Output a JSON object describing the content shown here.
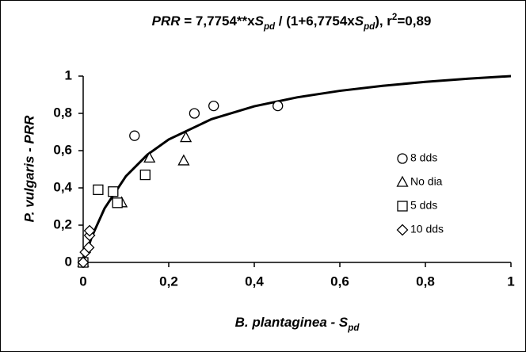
{
  "chart_data": {
    "type": "scatter",
    "title": [
      {
        "text": "PRR",
        "style": "italic"
      },
      {
        "text": " = 7,7754**x",
        "style": "normal"
      },
      {
        "text": "S",
        "style": "italic"
      },
      {
        "text": "pd",
        "style": "sub"
      },
      {
        "text": " / (1+6,7754x",
        "style": "normal"
      },
      {
        "text": "S",
        "style": "italic"
      },
      {
        "text": "pd",
        "style": "sub"
      },
      {
        "text": "), r",
        "style": "normal"
      },
      {
        "text": "2",
        "style": "sup"
      },
      {
        "text": "=0,89",
        "style": "normal"
      }
    ],
    "x_label": [
      {
        "text": "B. plantaginea - S",
        "style": "italic"
      },
      {
        "text": "pd",
        "style": "sub"
      }
    ],
    "y_label": "P. vulgaris - PRR",
    "xlim": [
      0,
      1
    ],
    "ylim": [
      0,
      1
    ],
    "xticks": [
      0,
      {
        "value": 0.2,
        "label": "0,2"
      },
      {
        "value": 0.4,
        "label": "0,4"
      },
      {
        "value": 0.6,
        "label": "0,6"
      },
      {
        "value": 0.8,
        "label": "0,8"
      },
      1
    ],
    "yticks": [
      0,
      {
        "value": 0.2,
        "label": "0,2"
      },
      {
        "value": 0.4,
        "label": "0,4"
      },
      {
        "value": 0.6,
        "label": "0,6"
      },
      {
        "value": 0.8,
        "label": "0,8"
      },
      1
    ],
    "curve": {
      "color": "#000000",
      "x": [
        0,
        0.02,
        0.05,
        0.1,
        0.15,
        0.2,
        0.3,
        0.4,
        0.5,
        0.6,
        0.7,
        0.8,
        0.9,
        1
      ],
      "y": [
        0,
        0.137,
        0.29,
        0.463,
        0.578,
        0.66,
        0.769,
        0.838,
        0.886,
        0.921,
        0.948,
        0.969,
        0.986,
        1
      ]
    },
    "series": [
      {
        "name": "8 dds",
        "marker": "circle",
        "color": "#000000",
        "x": [
          0,
          0.12,
          0.26,
          0.305,
          0.455
        ],
        "values": [
          0,
          0.68,
          0.8,
          0.84,
          0.84
        ]
      },
      {
        "name": "No dia",
        "marker": "triangle",
        "color": "#000000",
        "x": [
          0,
          0.09,
          0.155,
          0.235,
          0.24
        ],
        "values": [
          0,
          0.32,
          0.56,
          0.545,
          0.67
        ]
      },
      {
        "name": "5 dds",
        "marker": "square",
        "color": "#000000",
        "x": [
          0,
          0.035,
          0.07,
          0.08,
          0.145
        ],
        "values": [
          0,
          0.39,
          0.38,
          0.32,
          0.47
        ]
      },
      {
        "name": "10 dds",
        "marker": "diamond",
        "color": "#000000",
        "x": [
          0,
          0.005,
          0.013,
          0.015,
          0.015
        ],
        "values": [
          0,
          0.055,
          0.08,
          0.145,
          0.17
        ]
      }
    ]
  }
}
